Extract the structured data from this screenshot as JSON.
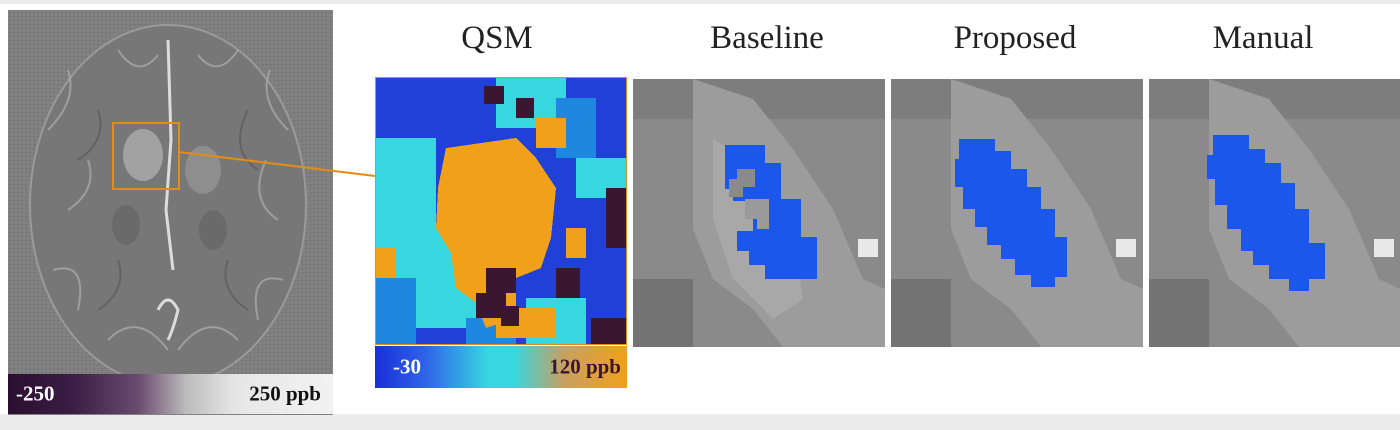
{
  "columns": [
    {
      "label": "QSM"
    },
    {
      "label": "Baseline"
    },
    {
      "label": "Proposed"
    },
    {
      "label": "Manual"
    }
  ],
  "overview_colorbar": {
    "min_label": "-250",
    "max_label": "250 ppb"
  },
  "qsm_colorbar": {
    "min_label": "-30",
    "max_label": "120 ppb"
  },
  "colors": {
    "roi_box": "#e28d15",
    "segmentation": "#1c57ec",
    "qsm_high": "#f0a019",
    "qsm_mid": "#37d7e0",
    "qsm_low": "#2040d8",
    "qsm_dark": "#3a1630",
    "overview_bg": "#7e7e7e"
  }
}
